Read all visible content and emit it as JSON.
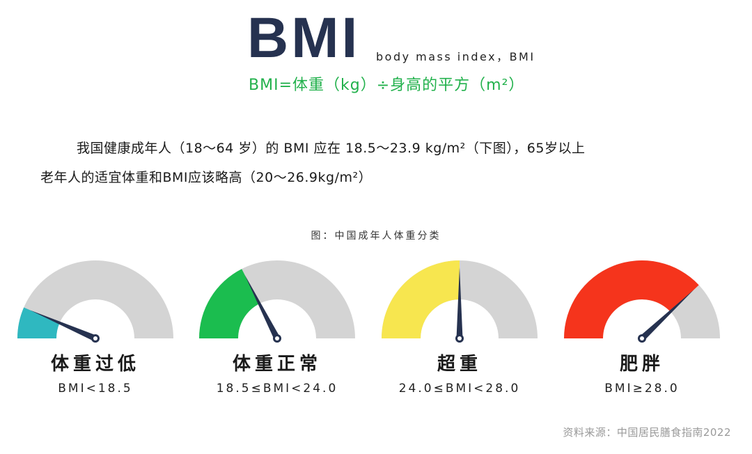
{
  "header": {
    "logo": "BMI",
    "subtitle": "body mass index，BMI",
    "formula": "BMI=体重（kg）÷身高的平方（m²）"
  },
  "body": {
    "line1": "我国健康成年人（18～64 岁）的 BMI 应在 18.5～23.9 kg/m²（下图），65岁以上",
    "line2": "老年人的适宜体重和BMI应该略高（20～26.9kg/m²）"
  },
  "figure": {
    "caption": "图：中国成年人体重分类",
    "track_color": "#d4d4d4",
    "needle_color": "#263250",
    "gauges": [
      {
        "label": "体重过低",
        "range": "BMI<18.5",
        "color": "#2fb8c0",
        "level": 0.13
      },
      {
        "label": "体重正常",
        "range": "18.5≤BMI<24.0",
        "color": "#1bbd4f",
        "level": 0.35
      },
      {
        "label": "超重",
        "range": "24.0≤BMI<28.0",
        "color": "#f7e64f",
        "level": 0.5
      },
      {
        "label": "肥胖",
        "range": "BMI≥28.0",
        "color": "#f5341c",
        "level": 0.76
      }
    ]
  },
  "footer": {
    "source": "资料来源：中国居民膳食指南2022"
  }
}
